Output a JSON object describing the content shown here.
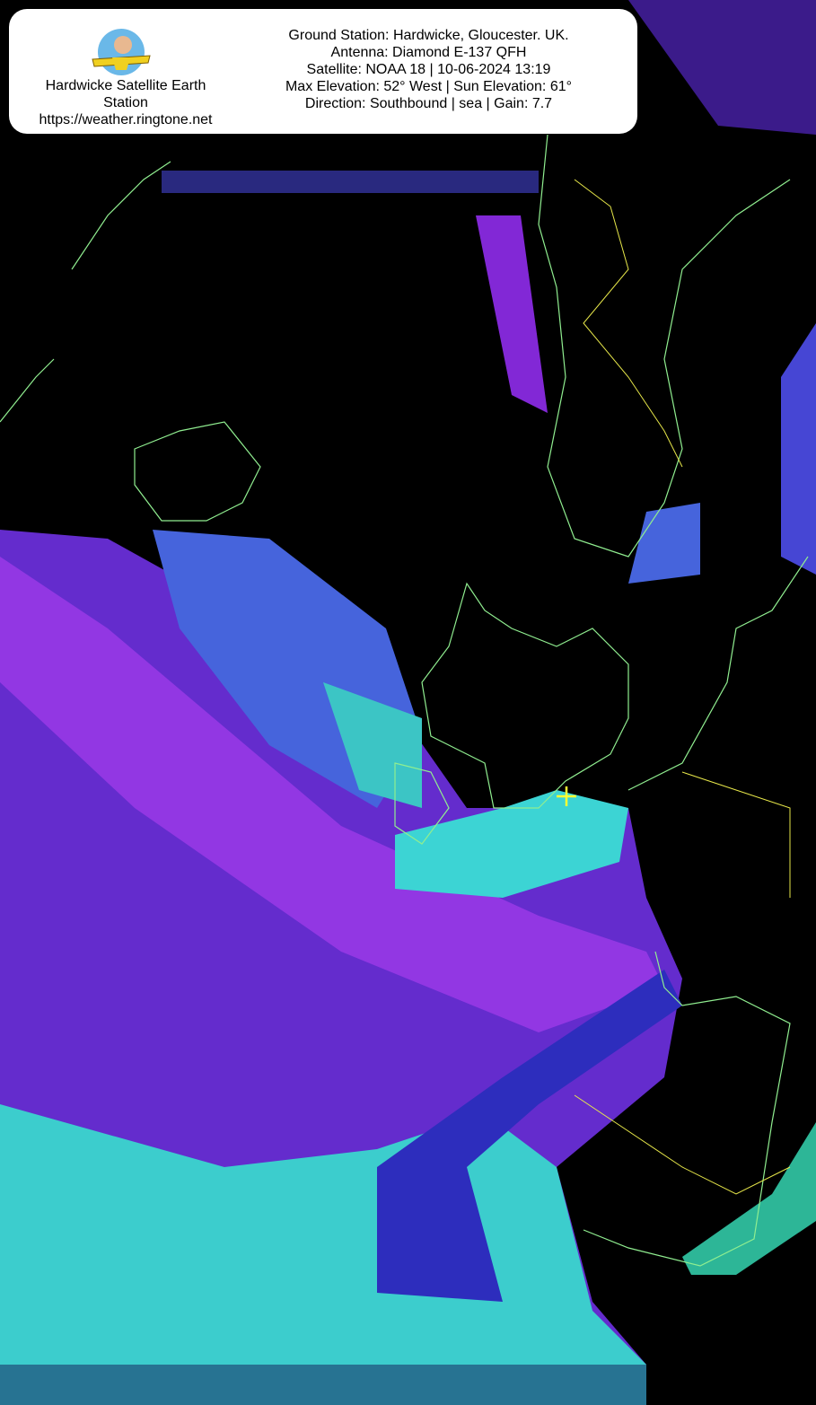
{
  "station": {
    "name": "Hardwicke Satellite Earth Station",
    "url": "https://weather.ringtone.net"
  },
  "pass": {
    "ground_station": "Ground Station: Hardwicke, Gloucester. UK.",
    "antenna": "Antenna: Diamond E-137 QFH",
    "satellite": "Satellite: NOAA 18 | 10-06-2024 13:19",
    "elevation": "Max Elevation: 52° West | Sun Elevation: 61°",
    "direction": "Direction: Southbound | sea | Gain: 7.7"
  },
  "colors": {
    "background": "#000000",
    "cloud_low": "#8a2be2",
    "cloud_mid": "#3a3ae0",
    "cloud_high": "#40e0e0",
    "coastline": "#90ee90",
    "border": "#e8e84a",
    "station_marker": "#ffff33"
  },
  "map": {
    "marker_icon": "crosshair-plus-icon"
  }
}
